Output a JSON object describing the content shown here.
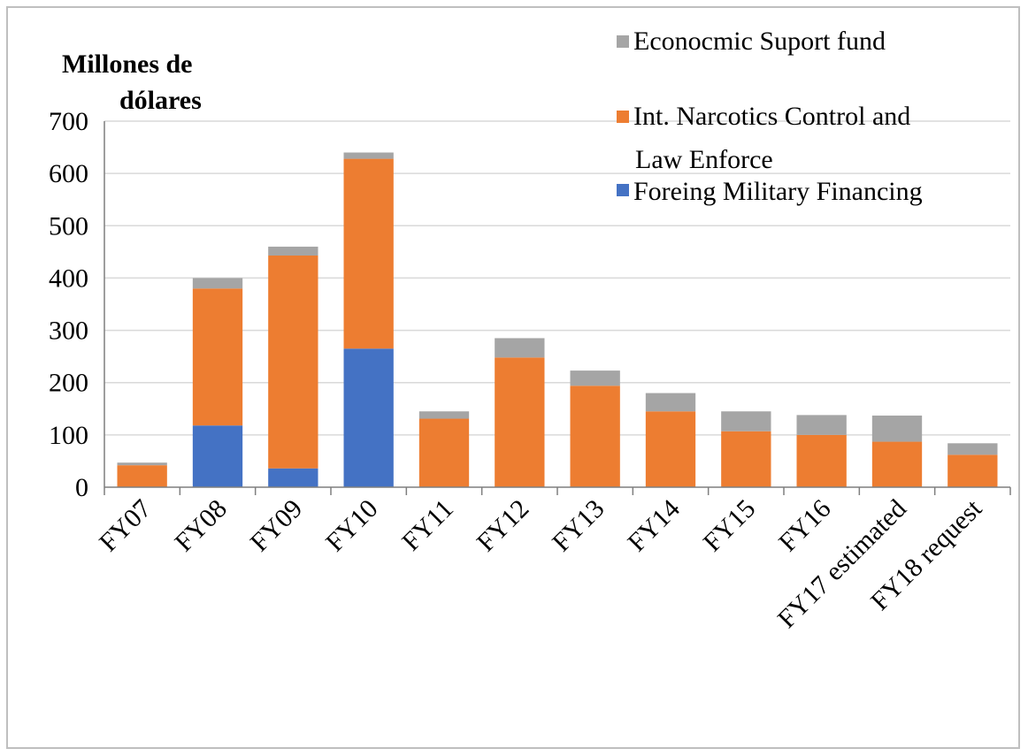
{
  "chart_data": {
    "type": "bar",
    "stacked": true,
    "ylabel": "Millones de dólares",
    "ylabel_lines": [
      "Millones de",
      "dólares"
    ],
    "ylim": [
      0,
      700
    ],
    "yticks": [
      "0",
      "100",
      "200",
      "300",
      "400",
      "500",
      "600",
      "700"
    ],
    "grid": true,
    "legend_position": "top-right",
    "categories": [
      "FY07",
      "FY08",
      "FY09",
      "FY10",
      "FY11",
      "FY12",
      "FY13",
      "FY14",
      "FY15",
      "FY16",
      "FY17 estimated",
      "FY18 request"
    ],
    "series": [
      {
        "name": "Foreing Military Financing",
        "color": "#4472c4",
        "values": [
          0,
          118,
          36,
          265,
          0,
          0,
          0,
          0,
          0,
          0,
          0,
          0
        ]
      },
      {
        "name": "Int. Narcotics Control and Law Enforce",
        "legend_lines": [
          "Int. Narcotics Control and",
          "Law Enforce"
        ],
        "color": "#ed7d31",
        "values": [
          42,
          262,
          407,
          363,
          131,
          248,
          194,
          145,
          107,
          100,
          87,
          62
        ]
      },
      {
        "name": "Econocmic Suport fund",
        "color": "#a5a5a5",
        "values": [
          5,
          20,
          17,
          12,
          14,
          37,
          29,
          35,
          38,
          38,
          50,
          22
        ]
      }
    ],
    "legend_order": [
      "Econocmic Suport fund",
      "Int. Narcotics Control and Law Enforce",
      "Foreing Military Financing"
    ]
  }
}
